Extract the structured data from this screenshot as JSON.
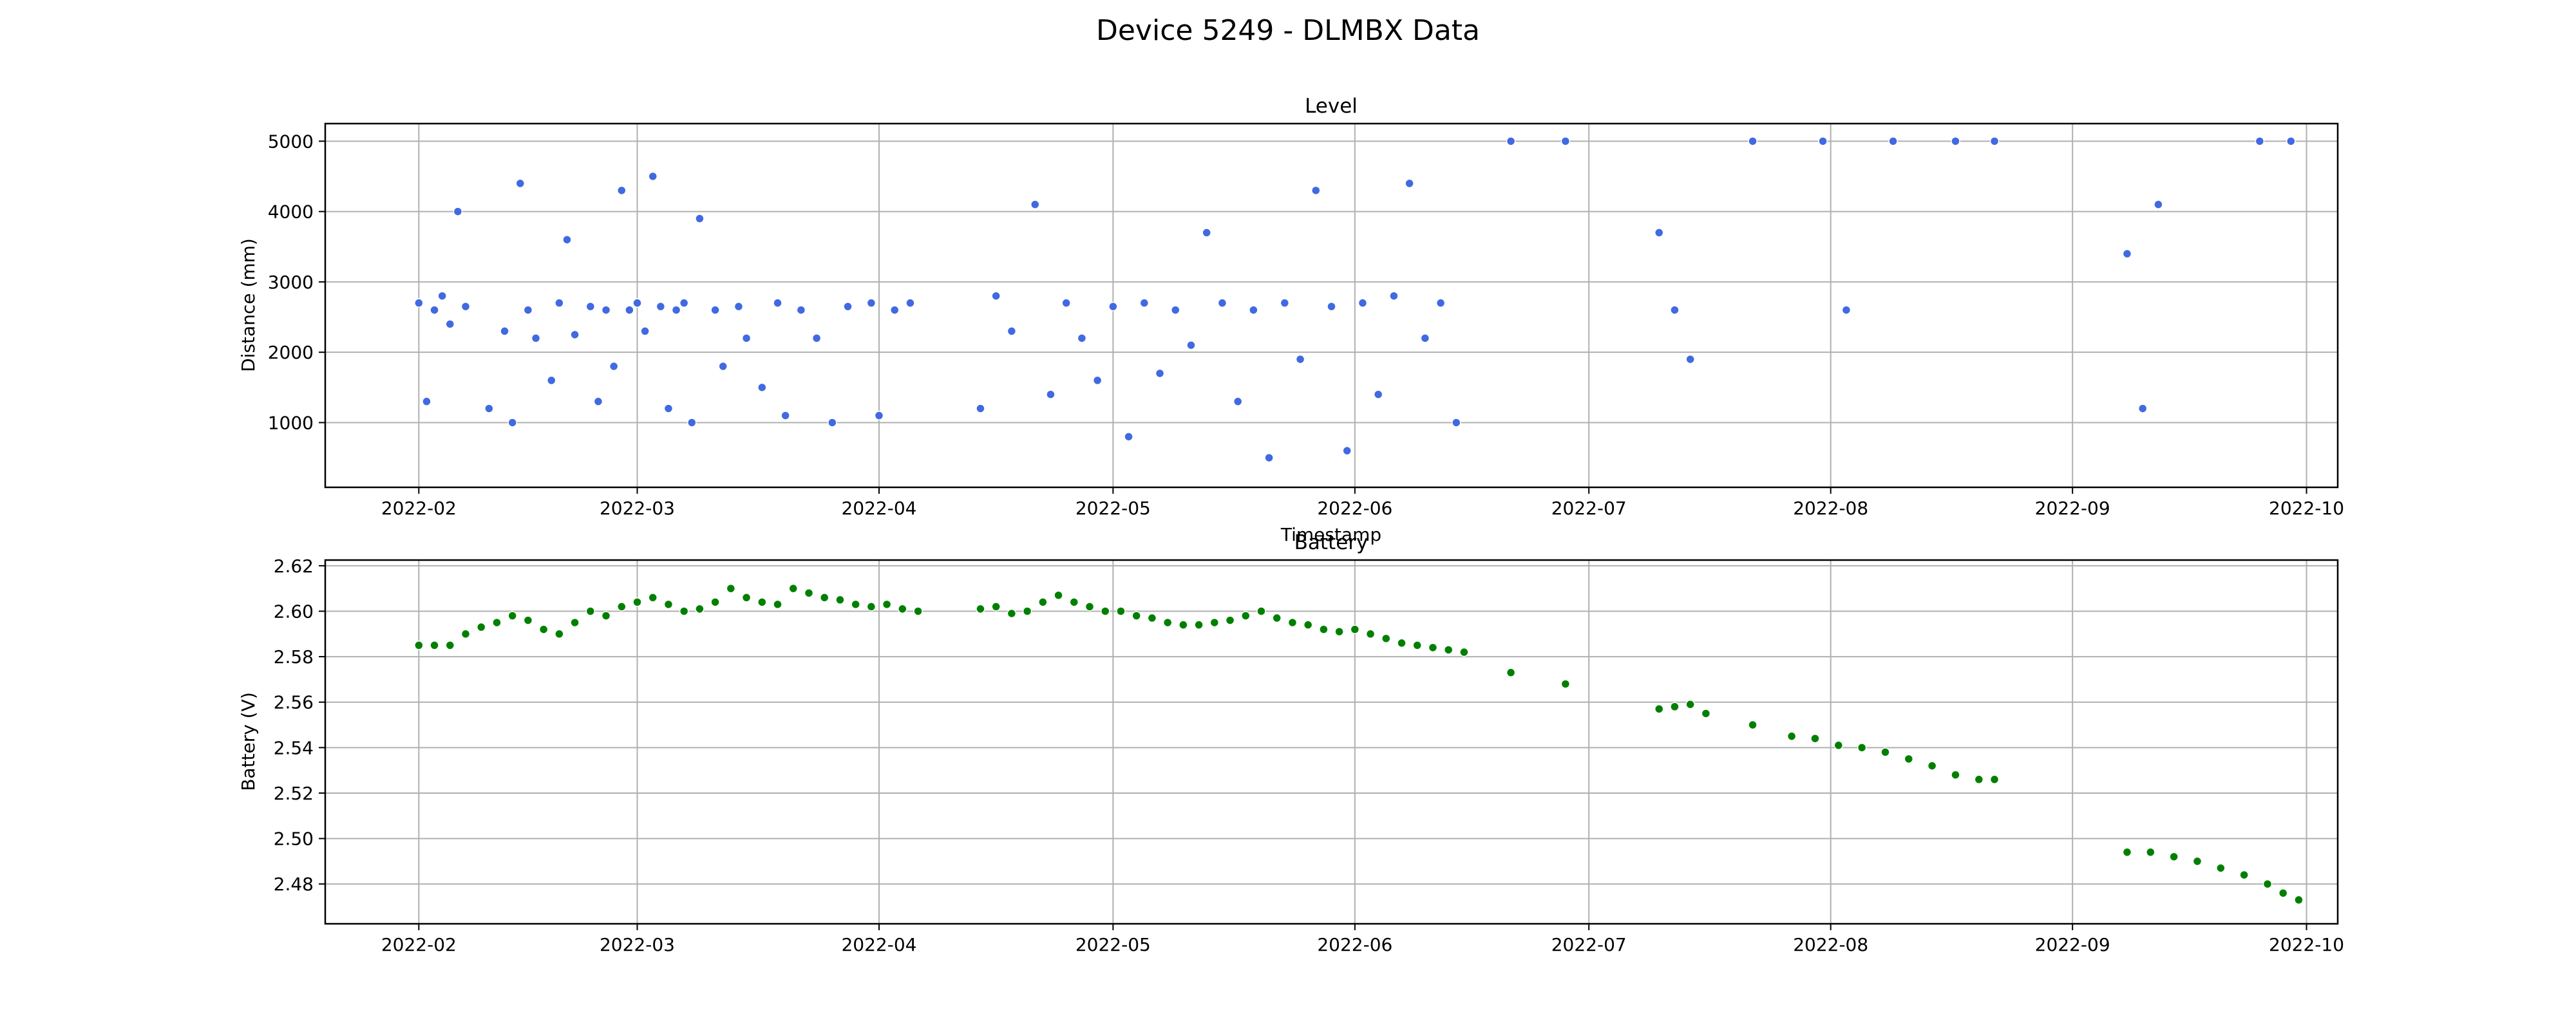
{
  "figure": {
    "title": "Device 5249 - DLMBX Data"
  },
  "chart_data": [
    {
      "type": "scatter",
      "title": "Level",
      "xlabel": "Timestamp",
      "ylabel": "Distance (mm)",
      "xlim": [
        "2022-01-20",
        "2022-10-05"
      ],
      "ylim": [
        80,
        5250
      ],
      "x_ticks": [
        "2022-02",
        "2022-03",
        "2022-04",
        "2022-05",
        "2022-06",
        "2022-07",
        "2022-08",
        "2022-09",
        "2022-10"
      ],
      "y_ticks": [
        1000,
        2000,
        3000,
        4000,
        5000
      ],
      "grid": true,
      "colors": {
        "marker": "#4169e1",
        "marker_light": "#c9d3f7",
        "edge": "#ffffff"
      },
      "series": [
        {
          "x": [
            "2022-02-01",
            "2022-02-02",
            "2022-02-03",
            "2022-02-04",
            "2022-02-05",
            "2022-02-06",
            "2022-02-07",
            "2022-02-10",
            "2022-02-12",
            "2022-02-13",
            "2022-02-14",
            "2022-02-15",
            "2022-02-16",
            "2022-02-18",
            "2022-02-19",
            "2022-02-20",
            "2022-02-21",
            "2022-02-23",
            "2022-02-24",
            "2022-02-25",
            "2022-02-26",
            "2022-02-27",
            "2022-02-28",
            "2022-03-01",
            "2022-03-02",
            "2022-03-03",
            "2022-03-04",
            "2022-03-05",
            "2022-03-06",
            "2022-03-07",
            "2022-03-08",
            "2022-03-09",
            "2022-03-11",
            "2022-03-12",
            "2022-03-14",
            "2022-03-15",
            "2022-03-17",
            "2022-03-19",
            "2022-03-20",
            "2022-03-22",
            "2022-03-24",
            "2022-03-26",
            "2022-03-28",
            "2022-03-31",
            "2022-04-01",
            "2022-04-03",
            "2022-04-05",
            "2022-04-14",
            "2022-04-16",
            "2022-04-18",
            "2022-04-21",
            "2022-04-23",
            "2022-04-25",
            "2022-04-27",
            "2022-04-29",
            "2022-05-01",
            "2022-05-03",
            "2022-05-05",
            "2022-05-07",
            "2022-05-09",
            "2022-05-11",
            "2022-05-13",
            "2022-05-15",
            "2022-05-17",
            "2022-05-19",
            "2022-05-21",
            "2022-05-23",
            "2022-05-25",
            "2022-05-27",
            "2022-05-29",
            "2022-05-31",
            "2022-06-02",
            "2022-06-04",
            "2022-06-06",
            "2022-06-08",
            "2022-06-10",
            "2022-06-12",
            "2022-06-14",
            "2022-06-21",
            "2022-06-28",
            "2022-07-10",
            "2022-07-12",
            "2022-07-14",
            "2022-07-22",
            "2022-07-31",
            "2022-08-03",
            "2022-08-09",
            "2022-08-17",
            "2022-08-22",
            "2022-09-08",
            "2022-09-10",
            "2022-09-12",
            "2022-09-25",
            "2022-09-29"
          ],
          "y": [
            2700,
            1300,
            2600,
            2800,
            2400,
            4000,
            2650,
            1200,
            2300,
            1000,
            4400,
            2600,
            2200,
            1600,
            2700,
            3600,
            2250,
            2650,
            1300,
            2600,
            1800,
            4300,
            2600,
            2700,
            2300,
            4500,
            2650,
            1200,
            2600,
            2700,
            1000,
            3900,
            2600,
            1800,
            2650,
            2200,
            1500,
            2700,
            1100,
            2600,
            2200,
            1000,
            2650,
            2700,
            1100,
            2600,
            2700,
            1200,
            2800,
            2300,
            4100,
            1400,
            2700,
            2200,
            1600,
            2650,
            800,
            2700,
            1700,
            2600,
            2100,
            3700,
            2700,
            1300,
            2600,
            500,
            2700,
            1900,
            4300,
            2650,
            600,
            2700,
            1400,
            2800,
            4400,
            2200,
            2700,
            1000,
            5000,
            5000,
            3700,
            2600,
            1900,
            5000,
            5000,
            2600,
            5000,
            5000,
            5000,
            3400,
            1200,
            4100,
            5000,
            5000
          ]
        }
      ]
    },
    {
      "type": "scatter",
      "title": "Battery",
      "xlabel": "",
      "ylabel": "Battery (V)",
      "xlim": [
        "2022-01-20",
        "2022-10-05"
      ],
      "ylim": [
        2.4625,
        2.6225
      ],
      "x_ticks": [
        "2022-02",
        "2022-03",
        "2022-04",
        "2022-05",
        "2022-06",
        "2022-07",
        "2022-08",
        "2022-09",
        "2022-10"
      ],
      "y_ticks": [
        2.48,
        2.5,
        2.52,
        2.54,
        2.56,
        2.58,
        2.6,
        2.62
      ],
      "grid": true,
      "colors": {
        "marker": "#008000",
        "marker_light": "#cde8cd",
        "edge": "#ffffff"
      },
      "series": [
        {
          "x": [
            "2022-02-01",
            "2022-02-03",
            "2022-02-05",
            "2022-02-07",
            "2022-02-09",
            "2022-02-11",
            "2022-02-13",
            "2022-02-15",
            "2022-02-17",
            "2022-02-19",
            "2022-02-21",
            "2022-02-23",
            "2022-02-25",
            "2022-02-27",
            "2022-03-01",
            "2022-03-03",
            "2022-03-05",
            "2022-03-07",
            "2022-03-09",
            "2022-03-11",
            "2022-03-13",
            "2022-03-15",
            "2022-03-17",
            "2022-03-19",
            "2022-03-21",
            "2022-03-23",
            "2022-03-25",
            "2022-03-27",
            "2022-03-29",
            "2022-03-31",
            "2022-04-02",
            "2022-04-04",
            "2022-04-06",
            "2022-04-14",
            "2022-04-16",
            "2022-04-18",
            "2022-04-20",
            "2022-04-22",
            "2022-04-24",
            "2022-04-26",
            "2022-04-28",
            "2022-04-30",
            "2022-05-02",
            "2022-05-04",
            "2022-05-06",
            "2022-05-08",
            "2022-05-10",
            "2022-05-12",
            "2022-05-14",
            "2022-05-16",
            "2022-05-18",
            "2022-05-20",
            "2022-05-22",
            "2022-05-24",
            "2022-05-26",
            "2022-05-28",
            "2022-05-30",
            "2022-06-01",
            "2022-06-03",
            "2022-06-05",
            "2022-06-07",
            "2022-06-09",
            "2022-06-11",
            "2022-06-13",
            "2022-06-15",
            "2022-06-21",
            "2022-06-28",
            "2022-07-10",
            "2022-07-12",
            "2022-07-14",
            "2022-07-16",
            "2022-07-22",
            "2022-07-27",
            "2022-07-30",
            "2022-08-02",
            "2022-08-05",
            "2022-08-08",
            "2022-08-11",
            "2022-08-14",
            "2022-08-17",
            "2022-08-20",
            "2022-08-22",
            "2022-09-08",
            "2022-09-11",
            "2022-09-14",
            "2022-09-17",
            "2022-09-20",
            "2022-09-23",
            "2022-09-26",
            "2022-09-28",
            "2022-09-30"
          ],
          "y": [
            2.585,
            2.585,
            2.585,
            2.59,
            2.593,
            2.595,
            2.598,
            2.596,
            2.592,
            2.59,
            2.595,
            2.6,
            2.598,
            2.602,
            2.604,
            2.606,
            2.603,
            2.6,
            2.601,
            2.604,
            2.61,
            2.606,
            2.604,
            2.603,
            2.61,
            2.608,
            2.606,
            2.605,
            2.603,
            2.602,
            2.603,
            2.601,
            2.6,
            2.601,
            2.602,
            2.599,
            2.6,
            2.604,
            2.607,
            2.604,
            2.602,
            2.6,
            2.6,
            2.598,
            2.597,
            2.595,
            2.594,
            2.594,
            2.595,
            2.596,
            2.598,
            2.6,
            2.597,
            2.595,
            2.594,
            2.592,
            2.591,
            2.592,
            2.59,
            2.588,
            2.586,
            2.585,
            2.584,
            2.583,
            2.582,
            2.573,
            2.568,
            2.557,
            2.558,
            2.559,
            2.555,
            2.55,
            2.545,
            2.544,
            2.541,
            2.54,
            2.538,
            2.535,
            2.532,
            2.528,
            2.526,
            2.526,
            2.494,
            2.494,
            2.492,
            2.49,
            2.487,
            2.484,
            2.48,
            2.476,
            2.473
          ]
        }
      ]
    }
  ]
}
